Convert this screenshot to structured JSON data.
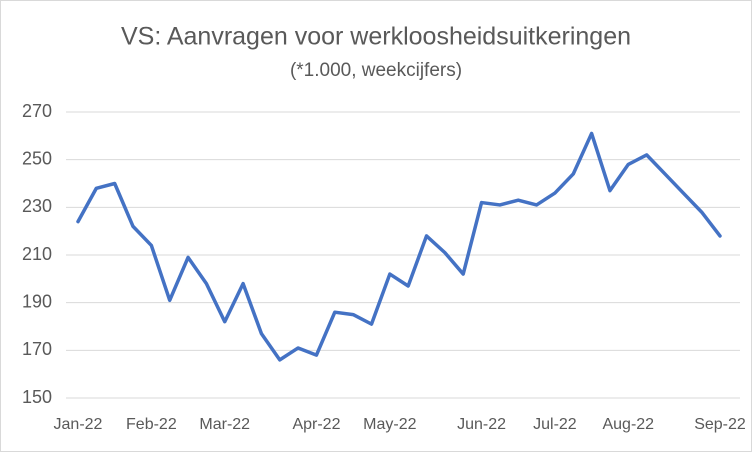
{
  "chart_data": {
    "type": "line",
    "title": "VS: Aanvragen voor werkloosheidsuitkeringen",
    "subtitle": "(*1.000, weekcijfers)",
    "categories": [
      "Jan-22",
      null,
      null,
      null,
      "Feb-22",
      null,
      null,
      null,
      "Mar-22",
      null,
      null,
      null,
      null,
      "Apr-22",
      null,
      null,
      null,
      "May-22",
      null,
      null,
      null,
      null,
      "Jun-22",
      null,
      null,
      null,
      "Jul-22",
      null,
      null,
      null,
      "Aug-22",
      null,
      null,
      null,
      null,
      "Sep-22"
    ],
    "series": [
      {
        "name": "Aanvragen",
        "color": "#4472c4",
        "values": [
          224,
          238,
          240,
          222,
          214,
          191,
          209,
          198,
          182,
          198,
          177,
          166,
          171,
          168,
          186,
          185,
          181,
          202,
          197,
          218,
          211,
          202,
          232,
          231,
          233,
          231,
          236,
          244,
          261,
          237,
          248,
          252,
          244,
          236,
          228,
          218
        ]
      }
    ],
    "ylim": [
      150,
      270
    ],
    "yticks": [
      150,
      170,
      190,
      210,
      230,
      250,
      270
    ],
    "grid": true
  }
}
